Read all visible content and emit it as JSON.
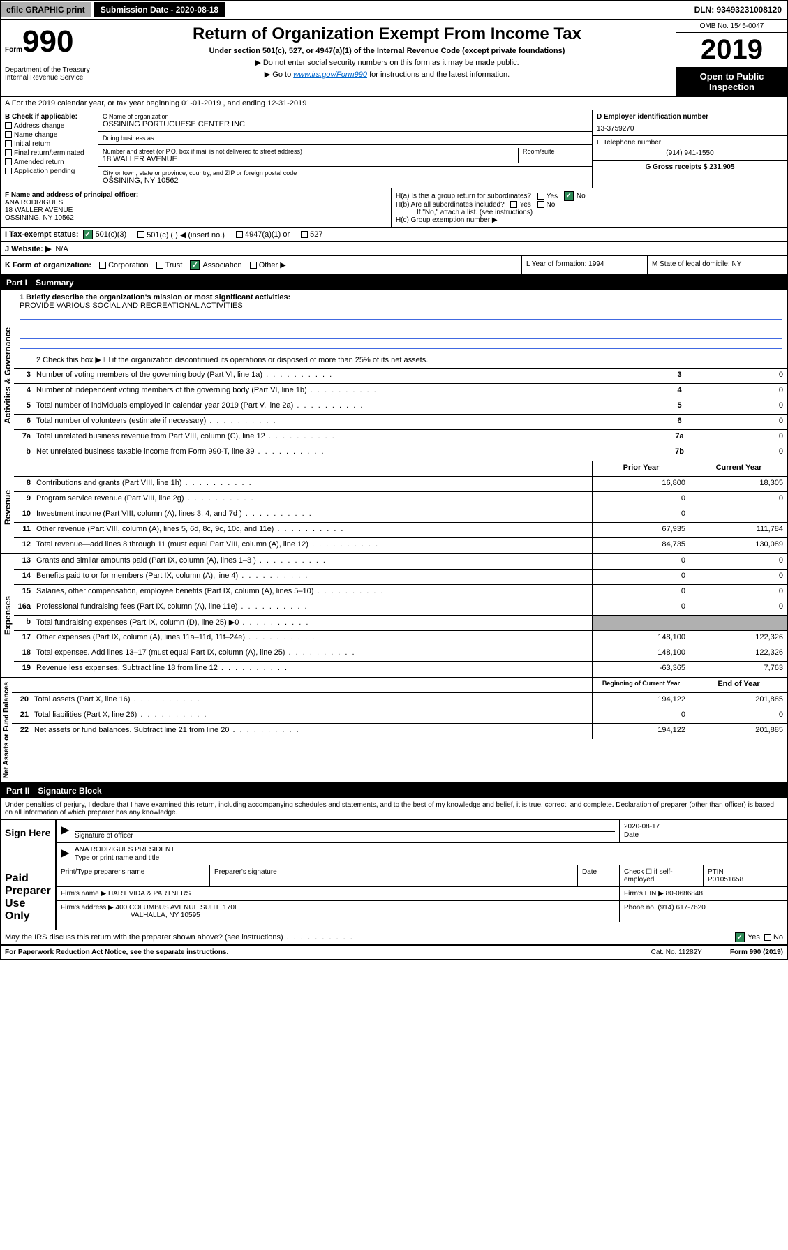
{
  "topbar": {
    "efile": "efile GRAPHIC print",
    "submission_label": "Submission Date - 2020-08-18",
    "dln_label": "DLN: 93493231008120"
  },
  "header": {
    "form_label": "Form",
    "form_number": "990",
    "dept": "Department of the Treasury\nInternal Revenue Service",
    "title": "Return of Organization Exempt From Income Tax",
    "subtitle": "Under section 501(c), 527, or 4947(a)(1) of the Internal Revenue Code (except private foundations)",
    "note1": "▶ Do not enter social security numbers on this form as it may be made public.",
    "note2_pre": "▶ Go to ",
    "note2_link": "www.irs.gov/Form990",
    "note2_post": " for instructions and the latest information.",
    "omb": "OMB No. 1545-0047",
    "year": "2019",
    "open_public": "Open to Public Inspection"
  },
  "row_a": "A For the 2019 calendar year, or tax year beginning 01-01-2019   , and ending 12-31-2019",
  "section_b": {
    "check_label": "B Check if applicable:",
    "checks": [
      "Address change",
      "Name change",
      "Initial return",
      "Final return/terminated",
      "Amended return",
      "Application pending"
    ],
    "c_label": "C Name of organization",
    "c_name": "OSSINING PORTUGUESE CENTER INC",
    "dba_label": "Doing business as",
    "addr_label": "Number and street (or P.O. box if mail is not delivered to street address)",
    "room_label": "Room/suite",
    "addr": "18 WALLER AVENUE",
    "city_label": "City or town, state or province, country, and ZIP or foreign postal code",
    "city": "OSSINING, NY  10562",
    "d_label": "D Employer identification number",
    "d_ein": "13-3759270",
    "e_label": "E Telephone number",
    "e_phone": "(914) 941-1550",
    "g_label": "G Gross receipts $ 231,905"
  },
  "section_fh": {
    "f_label": "F  Name and address of principal officer:",
    "f_name": "ANA RODRIGUES",
    "f_addr1": "18 WALLER AVENUE",
    "f_addr2": "OSSINING, NY  10562",
    "ha_label": "H(a)  Is this a group return for subordinates?",
    "hb_label": "H(b)  Are all subordinates included?",
    "hb_note": "If \"No,\" attach a list. (see instructions)",
    "hc_label": "H(c)  Group exemption number ▶",
    "yes": "Yes",
    "no": "No"
  },
  "row_i": {
    "label": "I   Tax-exempt status:",
    "opts": [
      "501(c)(3)",
      "501(c) (  ) ◀ (insert no.)",
      "4947(a)(1) or",
      "527"
    ]
  },
  "row_j": {
    "label": "J   Website: ▶",
    "val": "N/A"
  },
  "row_k": {
    "label": "K Form of organization:",
    "opts": [
      "Corporation",
      "Trust",
      "Association",
      "Other ▶"
    ],
    "l_label": "L Year of formation: 1994",
    "m_label": "M State of legal domicile: NY"
  },
  "part1": {
    "header_num": "Part I",
    "header_title": "Summary",
    "line1_label": "1  Briefly describe the organization's mission or most significant activities:",
    "line1_val": "PROVIDE VARIOUS SOCIAL AND RECREATIONAL ACTIVITIES",
    "line2": "2   Check this box ▶ ☐  if the organization discontinued its operations or disposed of more than 25% of its net assets.",
    "governance_label": "Activities & Governance",
    "revenue_label": "Revenue",
    "expenses_label": "Expenses",
    "netassets_label": "Net Assets or Fund Balances",
    "lines_gov": [
      {
        "n": "3",
        "t": "Number of voting members of the governing body (Part VI, line 1a)",
        "box": "3",
        "v": "0"
      },
      {
        "n": "4",
        "t": "Number of independent voting members of the governing body (Part VI, line 1b)",
        "box": "4",
        "v": "0"
      },
      {
        "n": "5",
        "t": "Total number of individuals employed in calendar year 2019 (Part V, line 2a)",
        "box": "5",
        "v": "0"
      },
      {
        "n": "6",
        "t": "Total number of volunteers (estimate if necessary)",
        "box": "6",
        "v": "0"
      },
      {
        "n": "7a",
        "t": "Total unrelated business revenue from Part VIII, column (C), line 12",
        "box": "7a",
        "v": "0"
      },
      {
        "n": "b",
        "t": "Net unrelated business taxable income from Form 990-T, line 39",
        "box": "7b",
        "v": "0"
      }
    ],
    "col_prior": "Prior Year",
    "col_current": "Current Year",
    "lines_rev": [
      {
        "n": "8",
        "t": "Contributions and grants (Part VIII, line 1h)",
        "p": "16,800",
        "c": "18,305"
      },
      {
        "n": "9",
        "t": "Program service revenue (Part VIII, line 2g)",
        "p": "0",
        "c": "0"
      },
      {
        "n": "10",
        "t": "Investment income (Part VIII, column (A), lines 3, 4, and 7d )",
        "p": "0",
        "c": ""
      },
      {
        "n": "11",
        "t": "Other revenue (Part VIII, column (A), lines 5, 6d, 8c, 9c, 10c, and 11e)",
        "p": "67,935",
        "c": "111,784"
      },
      {
        "n": "12",
        "t": "Total revenue—add lines 8 through 11 (must equal Part VIII, column (A), line 12)",
        "p": "84,735",
        "c": "130,089"
      }
    ],
    "lines_exp": [
      {
        "n": "13",
        "t": "Grants and similar amounts paid (Part IX, column (A), lines 1–3 )",
        "p": "0",
        "c": "0"
      },
      {
        "n": "14",
        "t": "Benefits paid to or for members (Part IX, column (A), line 4)",
        "p": "0",
        "c": "0"
      },
      {
        "n": "15",
        "t": "Salaries, other compensation, employee benefits (Part IX, column (A), lines 5–10)",
        "p": "0",
        "c": "0"
      },
      {
        "n": "16a",
        "t": "Professional fundraising fees (Part IX, column (A), line 11e)",
        "p": "0",
        "c": "0"
      },
      {
        "n": "b",
        "t": "Total fundraising expenses (Part IX, column (D), line 25) ▶0",
        "p": "",
        "c": "",
        "shaded": true
      },
      {
        "n": "17",
        "t": "Other expenses (Part IX, column (A), lines 11a–11d, 11f–24e)",
        "p": "148,100",
        "c": "122,326"
      },
      {
        "n": "18",
        "t": "Total expenses. Add lines 13–17 (must equal Part IX, column (A), line 25)",
        "p": "148,100",
        "c": "122,326"
      },
      {
        "n": "19",
        "t": "Revenue less expenses. Subtract line 18 from line 12",
        "p": "-63,365",
        "c": "7,763"
      }
    ],
    "col_begin": "Beginning of Current Year",
    "col_end": "End of Year",
    "lines_net": [
      {
        "n": "20",
        "t": "Total assets (Part X, line 16)",
        "p": "194,122",
        "c": "201,885"
      },
      {
        "n": "21",
        "t": "Total liabilities (Part X, line 26)",
        "p": "0",
        "c": "0"
      },
      {
        "n": "22",
        "t": "Net assets or fund balances. Subtract line 21 from line 20",
        "p": "194,122",
        "c": "201,885"
      }
    ]
  },
  "part2": {
    "header_num": "Part II",
    "header_title": "Signature Block",
    "perjury": "Under penalties of perjury, I declare that I have examined this return, including accompanying schedules and statements, and to the best of my knowledge and belief, it is true, correct, and complete. Declaration of preparer (other than officer) is based on all information of which preparer has any knowledge.",
    "sign_here": "Sign Here",
    "sig_officer": "Signature of officer",
    "sig_date_label": "Date",
    "sig_date": "2020-08-17",
    "officer_name": "ANA RODRIGUES  PRESIDENT",
    "type_name_label": "Type or print name and title",
    "paid_label": "Paid Preparer Use Only",
    "prep_name_label": "Print/Type preparer's name",
    "prep_sig_label": "Preparer's signature",
    "date_label": "Date",
    "check_self": "Check ☐ if self-employed",
    "ptin_label": "PTIN",
    "ptin": "P01051658",
    "firm_name_label": "Firm's name    ▶",
    "firm_name": "HART VIDA & PARTNERS",
    "firm_ein_label": "Firm's EIN ▶",
    "firm_ein": "80-0686848",
    "firm_addr_label": "Firm's address ▶",
    "firm_addr": "400 COLUMBUS AVENUE SUITE 170E",
    "firm_city": "VALHALLA, NY  10595",
    "phone_label": "Phone no.",
    "phone": "(914) 617-7620",
    "discuss": "May the IRS discuss this return with the preparer shown above? (see instructions)"
  },
  "footer": {
    "left": "For Paperwork Reduction Act Notice, see the separate instructions.",
    "mid": "Cat. No. 11282Y",
    "right": "Form 990 (2019)"
  },
  "colors": {
    "link": "#0066cc",
    "checkbox_green": "#2e8b57",
    "shade": "#b0b0b0",
    "rule_blue": "#4169e1"
  }
}
